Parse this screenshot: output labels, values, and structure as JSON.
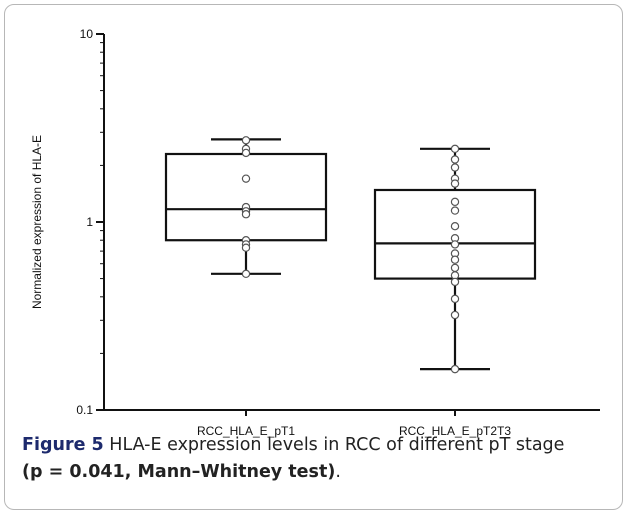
{
  "chart_data": {
    "type": "box",
    "y_scale": "log",
    "ylabel": "Normalized expression of HLA-E",
    "ylim": [
      0.1,
      10
    ],
    "yticks": [
      {
        "value": 10,
        "label": "10"
      },
      {
        "value": 1,
        "label": "1"
      },
      {
        "value": 0.1,
        "label": "0.1"
      }
    ],
    "categories": [
      "RCC_HLA_E_pT1",
      "RCC_HLA_E_pT2T3"
    ],
    "boxes": [
      {
        "name": "RCC_HLA_E_pT1",
        "whisker_low": 0.53,
        "q1": 0.8,
        "median": 1.17,
        "q3": 2.3,
        "whisker_high": 2.75,
        "points": [
          2.72,
          2.45,
          2.33,
          1.7,
          1.2,
          1.14,
          1.1,
          0.8,
          0.76,
          0.73,
          0.53
        ]
      },
      {
        "name": "RCC_HLA_E_pT2T3",
        "whisker_low": 0.165,
        "q1": 0.5,
        "median": 0.77,
        "q3": 1.48,
        "whisker_high": 2.45,
        "points": [
          2.45,
          2.15,
          1.95,
          1.7,
          1.6,
          1.28,
          1.15,
          0.95,
          0.82,
          0.76,
          0.68,
          0.63,
          0.57,
          0.52,
          0.48,
          0.39,
          0.32,
          0.165
        ]
      }
    ]
  },
  "caption": {
    "label": "Figure 5",
    "text": " HLA-E expression levels in RCC of different pT stage",
    "stat": "(p = 0.041, Mann–Whitney test)",
    "end": "."
  }
}
